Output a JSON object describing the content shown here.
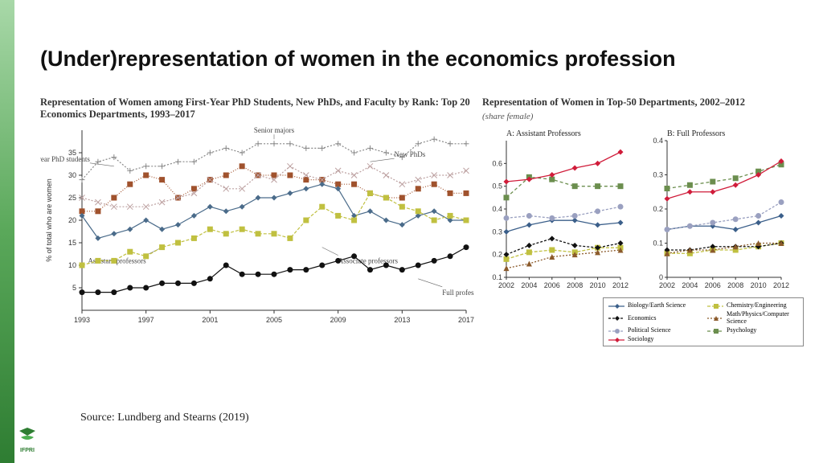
{
  "title": "(Under)representation of women in the economics profession",
  "source": "Source: Lundberg and Stearns (2019)",
  "left_chart": {
    "type": "line",
    "title": "Representation of Women among First-Year PhD Students, New PhDs, and Faculty by Rank: Top 20 Economics Departments, 1993–2017",
    "ylabel": "% of total who are women",
    "x": [
      1993,
      1994,
      1995,
      1996,
      1997,
      1998,
      1999,
      2000,
      2001,
      2002,
      2003,
      2004,
      2005,
      2006,
      2007,
      2008,
      2009,
      2010,
      2011,
      2012,
      2013,
      2014,
      2015,
      2016,
      2017
    ],
    "xlim": [
      1993,
      2017
    ],
    "ylim": [
      0,
      40
    ],
    "yticks": [
      5,
      10,
      15,
      20,
      25,
      30,
      35
    ],
    "xtick_labels": [
      "1993",
      "1997",
      "2001",
      "2005",
      "2009",
      "2013",
      "2017"
    ],
    "xtick_positions": [
      1993,
      1997,
      2001,
      2005,
      2009,
      2013,
      2017
    ],
    "series": [
      {
        "name": "Senior majors",
        "color": "#888888",
        "marker": "plus",
        "dash": "2,2",
        "y": [
          29,
          33,
          34,
          31,
          32,
          32,
          33,
          33,
          35,
          36,
          35,
          37,
          37,
          37,
          36,
          36,
          37,
          35,
          36,
          35,
          34,
          37,
          38,
          37,
          37
        ],
        "annot": {
          "x": 2005,
          "y": 38,
          "dx": 0,
          "dy": -6
        }
      },
      {
        "name": "First year PhD students",
        "color": "#a0522d",
        "marker": "square",
        "dash": "1,2",
        "y": [
          22,
          22,
          25,
          28,
          30,
          29,
          25,
          27,
          29,
          30,
          32,
          30,
          30,
          30,
          29,
          29,
          28,
          28,
          26,
          25,
          25,
          27,
          28,
          26,
          26
        ],
        "annot": {
          "x": 1995,
          "y": 32,
          "dx": -30,
          "dy": -4
        }
      },
      {
        "name": "New PhDs",
        "color": "#bca0a0",
        "marker": "x",
        "dash": "2,2",
        "y": [
          25,
          24,
          23,
          23,
          23,
          24,
          25,
          26,
          29,
          27,
          27,
          30,
          29,
          32,
          30,
          29,
          31,
          30,
          32,
          30,
          28,
          29,
          30,
          30,
          31
        ],
        "annot": {
          "x": 2011,
          "y": 33,
          "dx": 30,
          "dy": -4
        }
      },
      {
        "name": "Assistant professors",
        "color": "#4a6b8a",
        "marker": "diamond",
        "dash": "none",
        "y": [
          21,
          16,
          17,
          18,
          20,
          18,
          19,
          21,
          23,
          22,
          23,
          25,
          25,
          26,
          27,
          28,
          27,
          21,
          22,
          20,
          19,
          21,
          22,
          20,
          20
        ],
        "annot": {
          "x": 1998,
          "y": 14,
          "dx": -20,
          "dy": 10
        }
      },
      {
        "name": "Associate professors",
        "color": "#c0c040",
        "marker": "square",
        "dash": "4,2",
        "y": [
          10,
          11,
          11,
          13,
          12,
          14,
          15,
          16,
          18,
          17,
          18,
          17,
          17,
          16,
          20,
          23,
          21,
          20,
          26,
          25,
          23,
          22,
          20,
          21,
          20
        ],
        "annot": {
          "x": 2008,
          "y": 14,
          "dx": 20,
          "dy": 10
        }
      },
      {
        "name": "Full professors",
        "color": "#111111",
        "marker": "circle",
        "dash": "none",
        "y": [
          4,
          4,
          4,
          5,
          5,
          6,
          6,
          6,
          7,
          10,
          8,
          8,
          8,
          9,
          9,
          10,
          11,
          12,
          9,
          10,
          9,
          10,
          11,
          12,
          14
        ],
        "annot": {
          "x": 2014,
          "y": 7,
          "dx": 30,
          "dy": 10
        }
      }
    ],
    "background": "#ffffff",
    "grid": false,
    "label_fontsize": 9,
    "tick_fontsize": 9,
    "line_width": 1.2,
    "marker_size": 3.5
  },
  "right_chart": {
    "type": "line-panels",
    "title": "Representation of Women in Top-50 Departments, 2002–2012",
    "subtitle": "(share female)",
    "panels": [
      {
        "label": "A: Assistant Professors",
        "ylim": [
          0.1,
          0.7
        ],
        "yticks": [
          0.1,
          0.2,
          0.3,
          0.4,
          0.5,
          0.6
        ],
        "x": [
          2002,
          2004,
          2006,
          2008,
          2010,
          2012
        ],
        "series": {
          "biology": [
            0.3,
            0.33,
            0.35,
            0.35,
            0.33,
            0.34
          ],
          "chemistry": [
            0.18,
            0.21,
            0.22,
            0.21,
            0.23,
            0.23
          ],
          "economics": [
            0.2,
            0.24,
            0.27,
            0.24,
            0.23,
            0.25
          ],
          "math": [
            0.14,
            0.16,
            0.19,
            0.2,
            0.21,
            0.22
          ],
          "political": [
            0.36,
            0.37,
            0.36,
            0.37,
            0.39,
            0.41
          ],
          "psychology": [
            0.45,
            0.54,
            0.53,
            0.5,
            0.5,
            0.5
          ],
          "sociology": [
            0.52,
            0.53,
            0.55,
            0.58,
            0.6,
            0.65
          ]
        }
      },
      {
        "label": "B: Full Professors",
        "ylim": [
          0,
          0.4
        ],
        "yticks": [
          0,
          0.1,
          0.2,
          0.3,
          0.4
        ],
        "x": [
          2002,
          2004,
          2006,
          2008,
          2010,
          2012
        ],
        "series": {
          "biology": [
            0.14,
            0.15,
            0.15,
            0.14,
            0.16,
            0.18
          ],
          "chemistry": [
            0.07,
            0.07,
            0.08,
            0.08,
            0.09,
            0.1
          ],
          "economics": [
            0.08,
            0.08,
            0.09,
            0.09,
            0.09,
            0.1
          ],
          "math": [
            0.07,
            0.08,
            0.08,
            0.09,
            0.1,
            0.1
          ],
          "political": [
            0.14,
            0.15,
            0.16,
            0.17,
            0.18,
            0.22
          ],
          "psychology": [
            0.26,
            0.27,
            0.28,
            0.29,
            0.31,
            0.33
          ],
          "sociology": [
            0.23,
            0.25,
            0.25,
            0.27,
            0.3,
            0.34
          ]
        }
      }
    ],
    "xtick_labels": [
      "2002",
      "2004",
      "2006",
      "2008",
      "2010",
      "2012"
    ],
    "legend": [
      {
        "key": "biology",
        "label": "Biology/Earth Science",
        "color": "#3b5f8a",
        "marker": "diamond",
        "dash": "none"
      },
      {
        "key": "chemistry",
        "label": "Chemistry/Engineering",
        "color": "#c0c040",
        "marker": "square",
        "dash": "4,2"
      },
      {
        "key": "economics",
        "label": "Economics",
        "color": "#111111",
        "marker": "diamond",
        "dash": "3,2"
      },
      {
        "key": "math",
        "label": "Math/Physics/Computer Science",
        "color": "#8b5a2b",
        "marker": "triangle",
        "dash": "2,2"
      },
      {
        "key": "political",
        "label": "Political Science",
        "color": "#9aa0c0",
        "marker": "circle",
        "dash": "3,2"
      },
      {
        "key": "psychology",
        "label": "Psychology",
        "color": "#6b8e4e",
        "marker": "square",
        "dash": "4,3"
      },
      {
        "key": "sociology",
        "label": "Sociology",
        "color": "#d01c3a",
        "marker": "diamond",
        "dash": "none"
      }
    ],
    "line_width": 1.3,
    "marker_size": 3.5
  },
  "accent_color": "#2e7d32",
  "logo_text": "IFPRI"
}
